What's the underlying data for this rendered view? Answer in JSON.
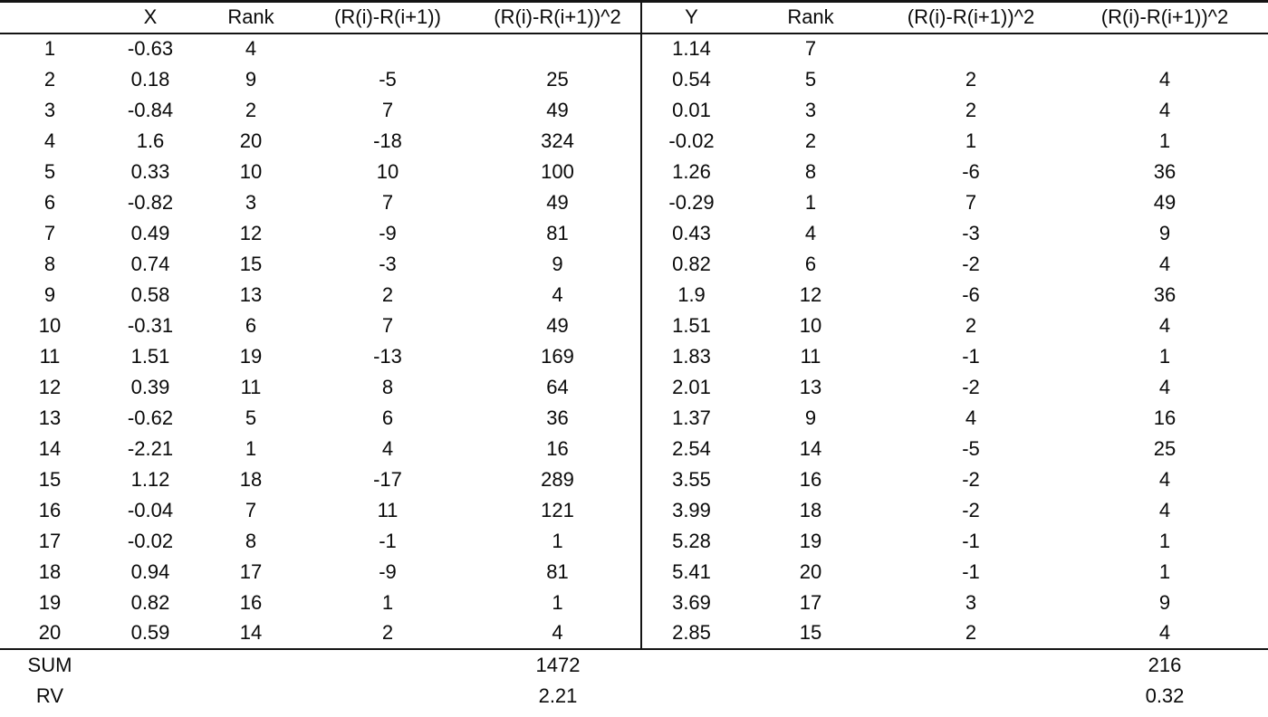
{
  "table": {
    "headers": [
      "",
      "X",
      "Rank",
      "(R(i)-R(i+1))",
      "(R(i)-R(i+1))^2",
      "Y",
      "Rank",
      "(R(i)-R(i+1))^2",
      "(R(i)-R(i+1))^2"
    ],
    "rows": [
      [
        "1",
        "-0.63",
        "4",
        "",
        "",
        "1.14",
        "7",
        "",
        ""
      ],
      [
        "2",
        "0.18",
        "9",
        "-5",
        "25",
        "0.54",
        "5",
        "2",
        "4"
      ],
      [
        "3",
        "-0.84",
        "2",
        "7",
        "49",
        "0.01",
        "3",
        "2",
        "4"
      ],
      [
        "4",
        "1.6",
        "20",
        "-18",
        "324",
        "-0.02",
        "2",
        "1",
        "1"
      ],
      [
        "5",
        "0.33",
        "10",
        "10",
        "100",
        "1.26",
        "8",
        "-6",
        "36"
      ],
      [
        "6",
        "-0.82",
        "3",
        "7",
        "49",
        "-0.29",
        "1",
        "7",
        "49"
      ],
      [
        "7",
        "0.49",
        "12",
        "-9",
        "81",
        "0.43",
        "4",
        "-3",
        "9"
      ],
      [
        "8",
        "0.74",
        "15",
        "-3",
        "9",
        "0.82",
        "6",
        "-2",
        "4"
      ],
      [
        "9",
        "0.58",
        "13",
        "2",
        "4",
        "1.9",
        "12",
        "-6",
        "36"
      ],
      [
        "10",
        "-0.31",
        "6",
        "7",
        "49",
        "1.51",
        "10",
        "2",
        "4"
      ],
      [
        "11",
        "1.51",
        "19",
        "-13",
        "169",
        "1.83",
        "11",
        "-1",
        "1"
      ],
      [
        "12",
        "0.39",
        "11",
        "8",
        "64",
        "2.01",
        "13",
        "-2",
        "4"
      ],
      [
        "13",
        "-0.62",
        "5",
        "6",
        "36",
        "1.37",
        "9",
        "4",
        "16"
      ],
      [
        "14",
        "-2.21",
        "1",
        "4",
        "16",
        "2.54",
        "14",
        "-5",
        "25"
      ],
      [
        "15",
        "1.12",
        "18",
        "-17",
        "289",
        "3.55",
        "16",
        "-2",
        "4"
      ],
      [
        "16",
        "-0.04",
        "7",
        "11",
        "121",
        "3.99",
        "18",
        "-2",
        "4"
      ],
      [
        "17",
        "-0.02",
        "8",
        "-1",
        "1",
        "5.28",
        "19",
        "-1",
        "1"
      ],
      [
        "18",
        "0.94",
        "17",
        "-9",
        "81",
        "5.41",
        "20",
        "-1",
        "1"
      ],
      [
        "19",
        "0.82",
        "16",
        "1",
        "1",
        "3.69",
        "17",
        "3",
        "9"
      ],
      [
        "20",
        "0.59",
        "14",
        "2",
        "4",
        "2.85",
        "15",
        "2",
        "4"
      ]
    ],
    "summary": {
      "sum": {
        "label": "SUM",
        "left_value": "1472",
        "right_value": "216"
      },
      "rv": {
        "label": "RV",
        "left_value": "2.21",
        "right_value": "0.32"
      }
    }
  }
}
